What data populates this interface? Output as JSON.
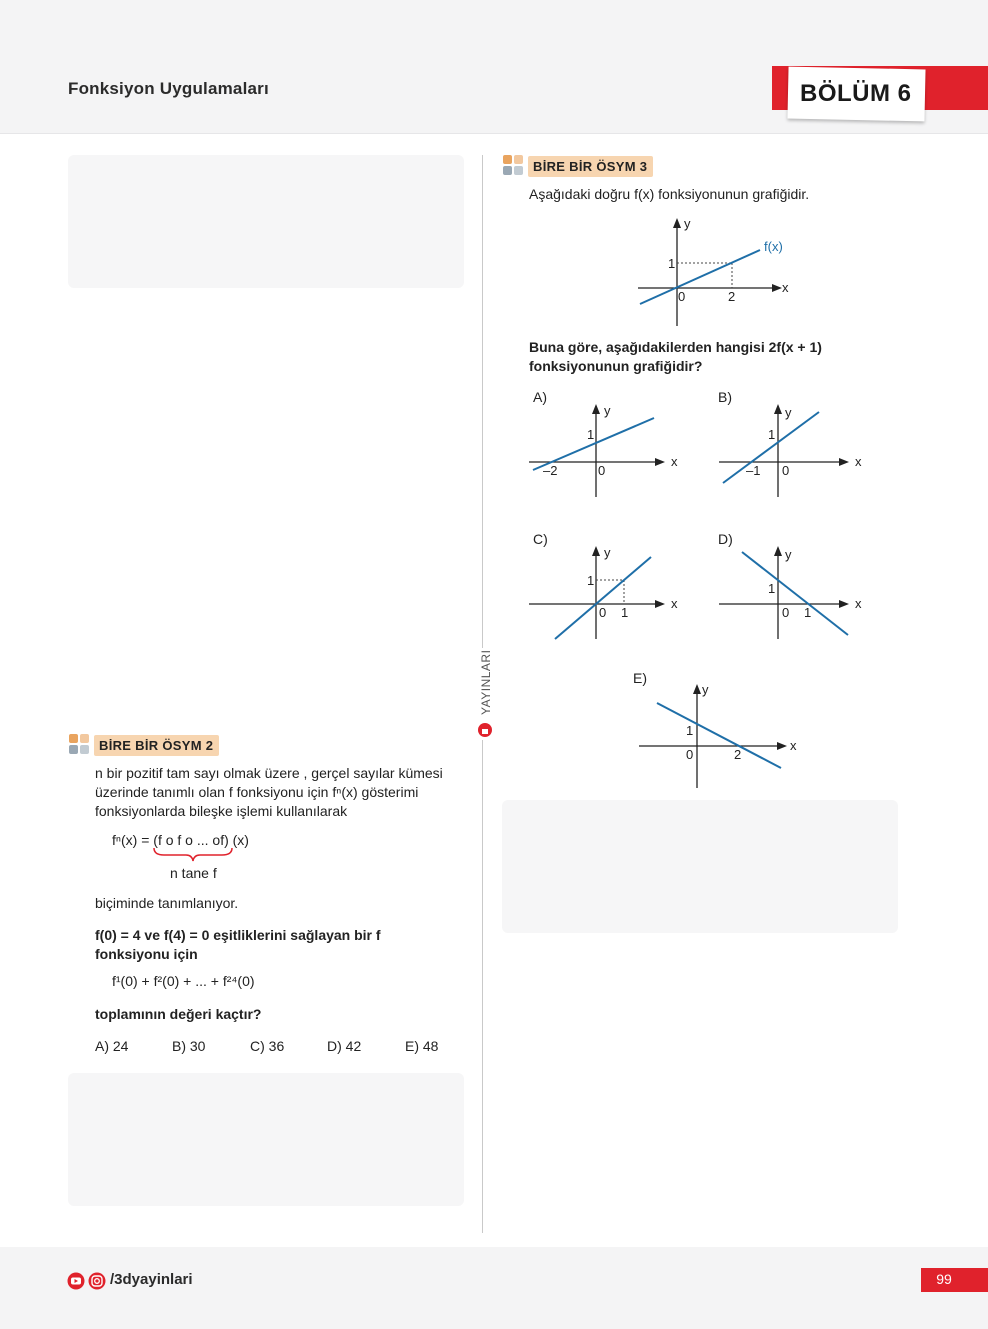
{
  "header": {
    "title": "Fonksiyon Uygulamaları",
    "section": "BÖLÜM 6"
  },
  "side_label": "YAYINLARI",
  "q2": {
    "badge": "BİRE BİR ÖSYM 2",
    "intro_1": "n bir pozitif tam sayı olmak üzere , gerçel sayılar kümesi",
    "intro_2": "üzerinde tanımlı olan f fonksiyonu için fⁿ(x) gösterimi",
    "intro_3": "fonksiyonlarda bileşke işlemi kullanılarak",
    "formula": "fⁿ(x) = (f o f o ... of) (x)",
    "brace_label": "n tane f",
    "defined": "biçiminde tanımlanıyor.",
    "cond_1": "f(0) = 4 ve f(4) = 0 eşitliklerini sağlayan bir f",
    "cond_2": "fonksiyonu için",
    "sum": "f¹(0) + f²(0) + ... + f²⁴(0)",
    "question": "toplamının değeri kaçtır?",
    "options": [
      "A) 24",
      "B) 30",
      "C) 36",
      "D) 42",
      "E) 48"
    ]
  },
  "q3": {
    "badge": "BİRE BİR ÖSYM 3",
    "intro": "Aşağıdaki doğru f(x) fonksiyonunun grafiğidir.",
    "question_1": "Buna göre, aşağıdakilerden hangisi 2f(x + 1)",
    "question_2": "fonksiyonunun grafiğidir?",
    "main_graph": {
      "label_fx": "f(x)",
      "x_axis": "x",
      "y_axis": "y",
      "tick_x": "2",
      "tick_y": "1",
      "origin": "0"
    },
    "options": [
      {
        "label": "A)",
        "x_axis": "x",
        "y_axis": "y",
        "tick_x": "–2",
        "tick_y": "1",
        "origin": "0"
      },
      {
        "label": "B)",
        "x_axis": "x",
        "y_axis": "y",
        "tick_x": "–1",
        "tick_y": "1",
        "origin": "0"
      },
      {
        "label": "C)",
        "x_axis": "x",
        "y_axis": "y",
        "tick_x": "1",
        "tick_y": "1",
        "origin": "0"
      },
      {
        "label": "D)",
        "x_axis": "x",
        "y_axis": "y",
        "tick_x": "1",
        "tick_y": "1",
        "origin": "0"
      },
      {
        "label": "E)",
        "x_axis": "x",
        "y_axis": "y",
        "tick_x": "2",
        "tick_y": "1",
        "origin": "0"
      }
    ]
  },
  "footer": {
    "handle": "/3dyayinlari",
    "page_number": "99"
  },
  "colors": {
    "accent_red": "#e0222c",
    "badge_bg": "#f7d5b0",
    "graph_line": "#1f6fa8"
  }
}
